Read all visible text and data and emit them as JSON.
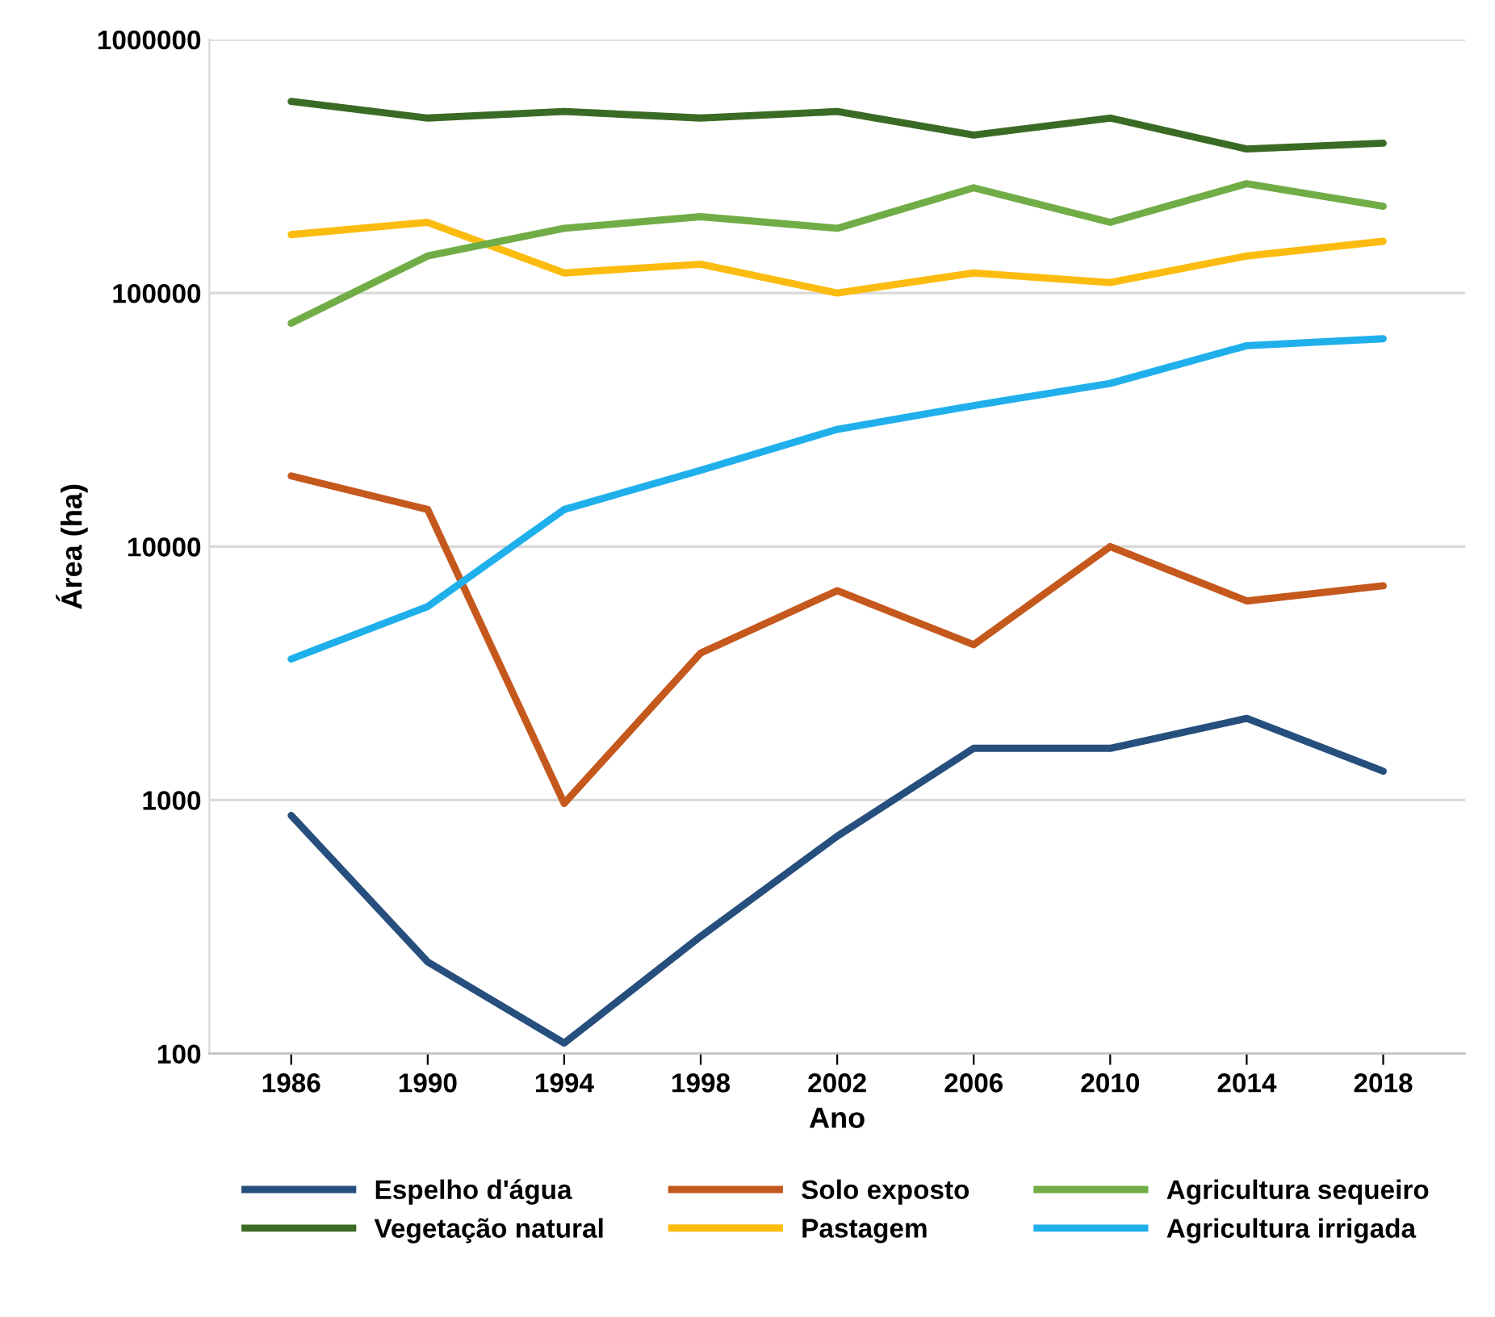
{
  "chart_data": {
    "type": "line",
    "xlabel": "Ano",
    "ylabel": "Área (ha)",
    "log": true,
    "grid": "y",
    "legend": "bottom",
    "line_style": "solid",
    "marker": "none",
    "categories": [
      "1986",
      "1990",
      "1994",
      "1998",
      "2002",
      "2006",
      "2010",
      "2014",
      "2018"
    ],
    "ylim": [
      100,
      1000000
    ],
    "yticks": [
      100,
      1000,
      10000,
      100000,
      1000000
    ],
    "series": [
      {
        "name": "Espelho d'água",
        "color": "#264f7d",
        "values": [
          870,
          230,
          110,
          290,
          720,
          1600,
          1600,
          2100,
          1300
        ]
      },
      {
        "name": "Vegetação natural",
        "color": "#3a6b25",
        "values": [
          570000,
          490000,
          520000,
          490000,
          520000,
          420000,
          490000,
          370000,
          390000
        ]
      },
      {
        "name": "Solo exposto",
        "color": "#c5581c",
        "values": [
          19000,
          14000,
          970,
          3800,
          6700,
          4100,
          10000,
          6100,
          7000
        ]
      },
      {
        "name": "Pastagem",
        "color": "#fcbc0f",
        "values": [
          170000,
          190000,
          120000,
          130000,
          100000,
          120000,
          110000,
          140000,
          160000
        ]
      },
      {
        "name": "Agricultura sequeiro",
        "color": "#70ad47",
        "values": [
          76000,
          140000,
          180000,
          200000,
          180000,
          260000,
          190000,
          270000,
          220000
        ]
      },
      {
        "name": "Agricultura irrigada",
        "color": "#1fb0ec",
        "values": [
          3600,
          5800,
          14000,
          20000,
          29000,
          36000,
          44000,
          62000,
          66000
        ]
      }
    ]
  }
}
